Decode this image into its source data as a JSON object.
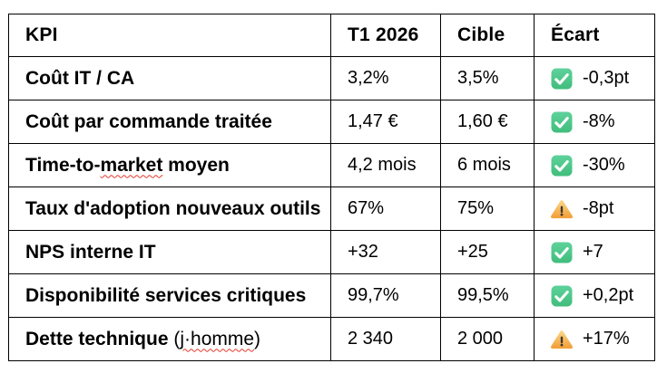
{
  "table": {
    "columns": [
      {
        "key": "kpi",
        "label": "KPI"
      },
      {
        "key": "t1",
        "label": "T1 2026"
      },
      {
        "key": "cible",
        "label": "Cible"
      },
      {
        "key": "ecart",
        "label": "Écart"
      }
    ],
    "rows": [
      {
        "kpi": "Coût IT / CA",
        "t1": "3,2%",
        "cible": "3,5%",
        "status": "ok",
        "status_icon": "check-icon",
        "ecart": "-0,3pt"
      },
      {
        "kpi": "Coût par commande traitée",
        "t1": "1,47 €",
        "cible": "1,60 €",
        "status": "ok",
        "status_icon": "check-icon",
        "ecart": "-8%"
      },
      {
        "kpi": "Time-to-market moyen",
        "kpi_parts": [
          {
            "text": "Time-to-",
            "bold": true
          },
          {
            "text": "market",
            "bold": true,
            "squiggle": true
          },
          {
            "text": " moyen",
            "bold": true
          }
        ],
        "t1": "4,2 mois",
        "cible": "6 mois",
        "status": "ok",
        "status_icon": "check-icon",
        "ecart": "-30%"
      },
      {
        "kpi": "Taux d'adoption nouveaux outils",
        "t1": "67%",
        "cible": "75%",
        "status": "warn",
        "status_icon": "warning-icon",
        "ecart": "-8pt"
      },
      {
        "kpi": "NPS interne IT",
        "t1": "+32",
        "cible": "+25",
        "status": "ok",
        "status_icon": "check-icon",
        "ecart": "+7"
      },
      {
        "kpi": "Disponibilité services critiques",
        "t1": "99,7%",
        "cible": "99,5%",
        "status": "ok",
        "status_icon": "check-icon",
        "ecart": "+0,2pt"
      },
      {
        "kpi": "Dette technique (j·homme)",
        "kpi_parts": [
          {
            "text": "Dette technique ",
            "bold": true
          },
          {
            "text": "(",
            "bold": false
          },
          {
            "text": "j·homme",
            "bold": false,
            "squiggle": true
          },
          {
            "text": ")",
            "bold": false
          }
        ],
        "t1": "2 340",
        "cible": "2 000",
        "status": "warn",
        "status_icon": "warning-icon",
        "ecart": "+17%"
      }
    ]
  },
  "colors": {
    "text": "#000000",
    "border": "#000000",
    "status_ok_top": "#5ed29b",
    "status_ok_bottom": "#41bd7c",
    "check_mark": "#ffffff",
    "status_warn_top": "#fbd282",
    "status_warn_bottom": "#f2a23d",
    "warn_exclamation": "#3f3a33",
    "spellcheck_red": "#e6392e"
  }
}
